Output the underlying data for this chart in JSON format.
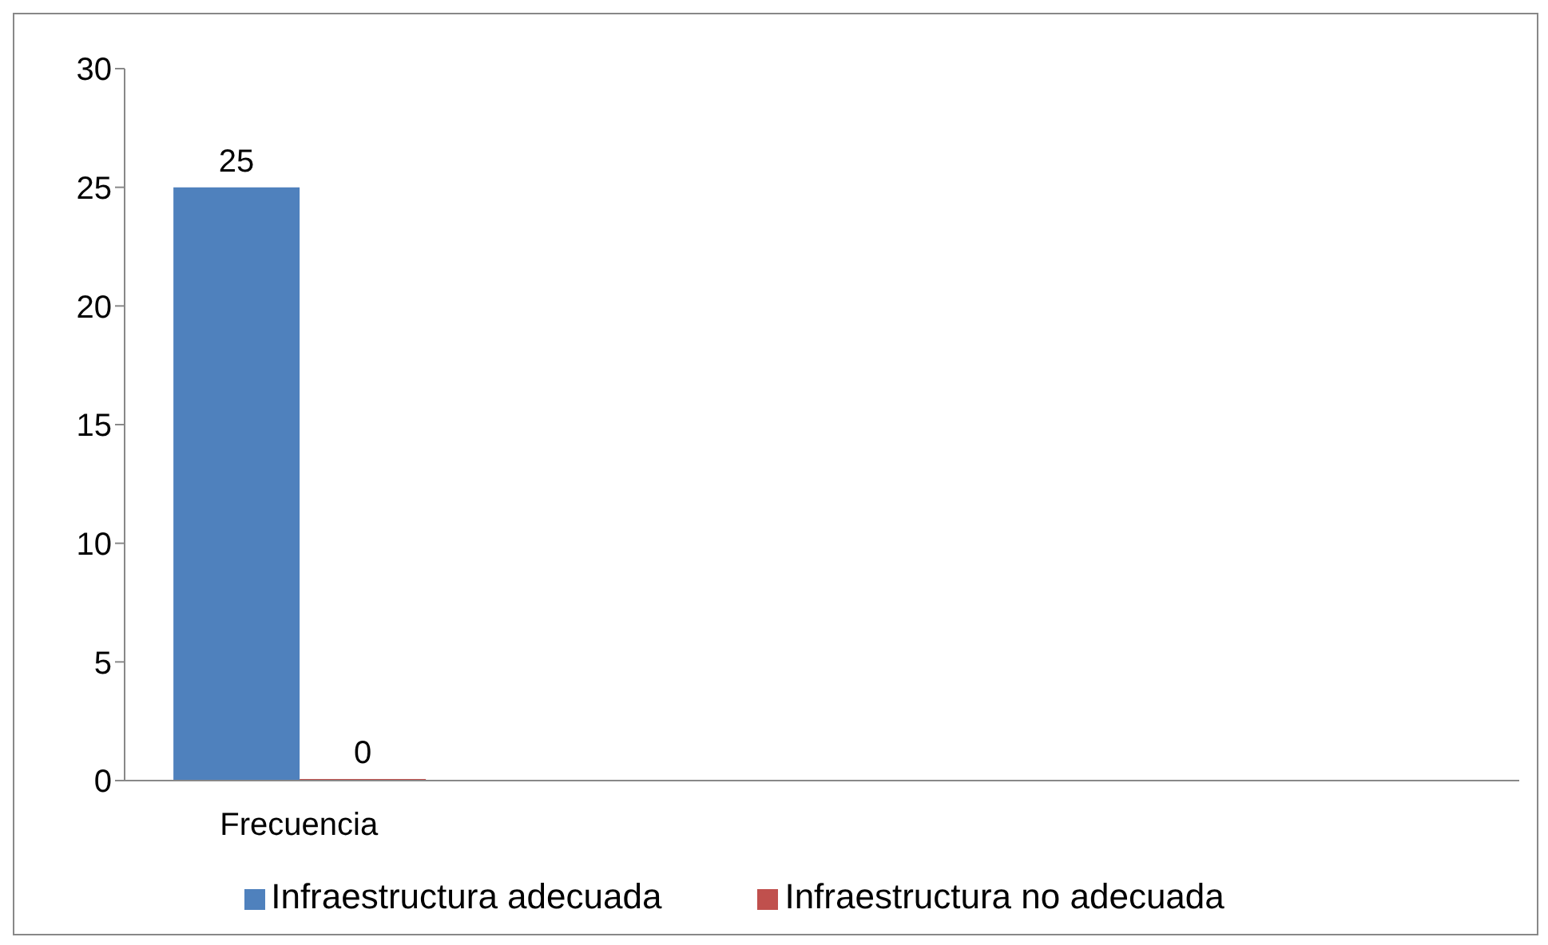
{
  "chart_data": {
    "type": "bar",
    "categories": [
      "Frecuencia",
      null,
      null,
      null
    ],
    "series": [
      {
        "name": "Infraestructura adecuada",
        "color": "#4f81bd",
        "values": [
          25,
          null,
          null,
          null
        ]
      },
      {
        "name": "Infraestructura no adecuada",
        "color": "#c0504d",
        "values": [
          0,
          null,
          null,
          null
        ]
      }
    ],
    "ylim": [
      0,
      30
    ],
    "yticks": [
      0,
      5,
      10,
      15,
      20,
      25,
      30
    ],
    "grid": false,
    "legend": "bottom",
    "data_labels": true
  }
}
